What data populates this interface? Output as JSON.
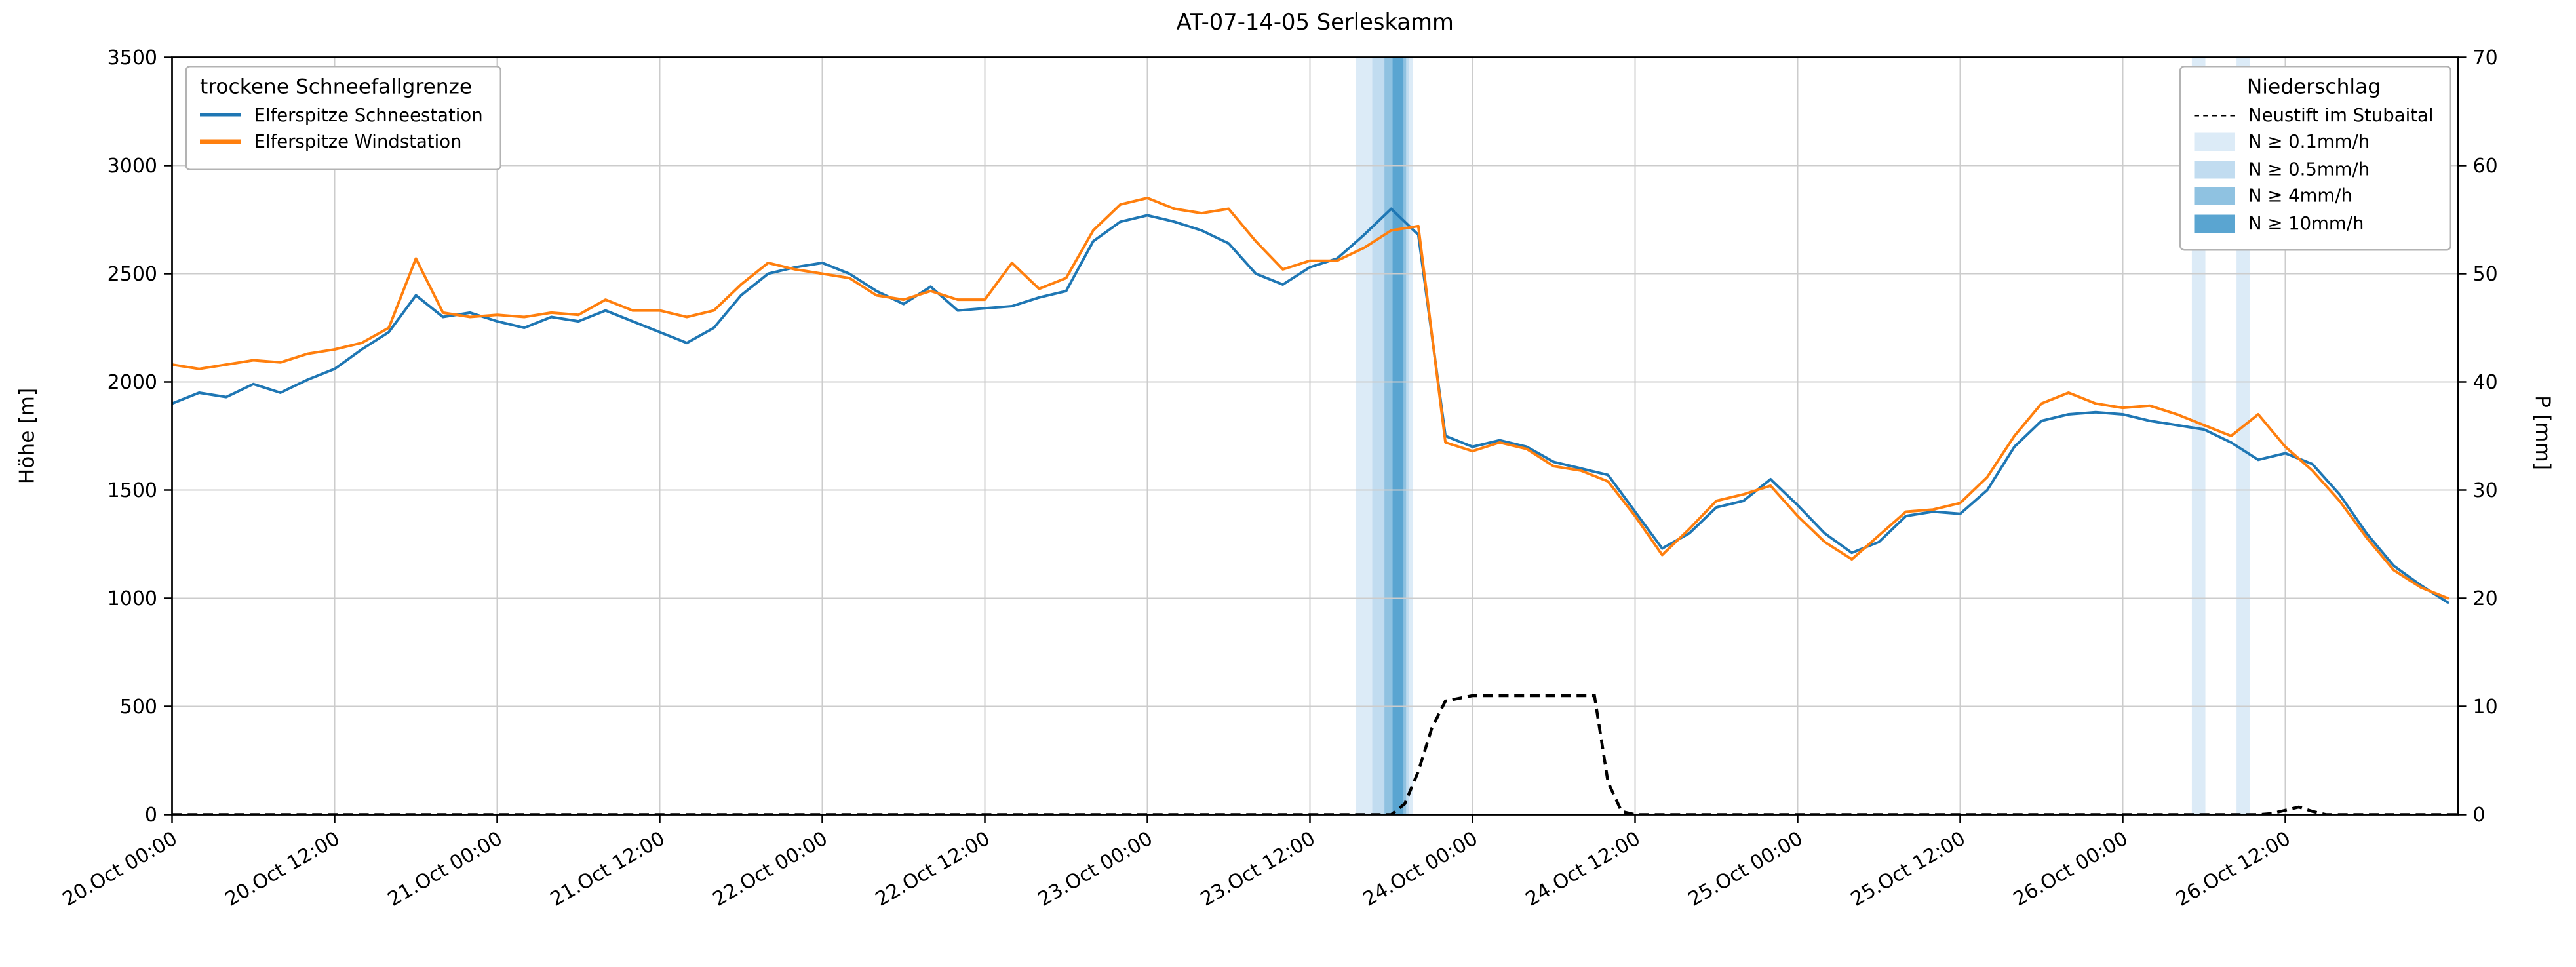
{
  "title": "AT-07-14-05 Serleskamm",
  "axes": {
    "ylabel_left": "Höhe [m]",
    "ylabel_right": "P [mm]",
    "ylim_left": [
      0,
      3500
    ],
    "ylim_right": [
      0,
      70
    ],
    "yticks_left": [
      0,
      500,
      1000,
      1500,
      2000,
      2500,
      3000,
      3500
    ],
    "yticks_right": [
      0,
      10,
      20,
      30,
      40,
      50,
      60,
      70
    ],
    "xlim_hours": [
      0,
      168.75
    ],
    "xticks": [
      {
        "hour": 0,
        "label": "20.Oct 00:00"
      },
      {
        "hour": 12,
        "label": "20.Oct 12:00"
      },
      {
        "hour": 24,
        "label": "21.Oct 00:00"
      },
      {
        "hour": 36,
        "label": "21.Oct 12:00"
      },
      {
        "hour": 48,
        "label": "22.Oct 00:00"
      },
      {
        "hour": 60,
        "label": "22.Oct 12:00"
      },
      {
        "hour": 72,
        "label": "23.Oct 00:00"
      },
      {
        "hour": 84,
        "label": "23.Oct 12:00"
      },
      {
        "hour": 96,
        "label": "24.Oct 00:00"
      },
      {
        "hour": 108,
        "label": "24.Oct 12:00"
      },
      {
        "hour": 120,
        "label": "25.Oct 00:00"
      },
      {
        "hour": 132,
        "label": "25.Oct 12:00"
      },
      {
        "hour": 144,
        "label": "26.Oct 00:00"
      },
      {
        "hour": 156,
        "label": "26.Oct 12:00"
      }
    ]
  },
  "legend_snowline": {
    "title": "trockene Schneefallgrenze",
    "entries": [
      {
        "label": "Elferspitze Schneestation",
        "color": "#1f77b4"
      },
      {
        "label": "Elferspitze Windstation",
        "color": "#ff7f0e"
      }
    ]
  },
  "legend_precip": {
    "title": "Niederschlag",
    "line_entry": {
      "label": "Neustift im Stubaital",
      "color": "#000000"
    },
    "band_entries": [
      {
        "label": "N ≥ 0.1mm/h",
        "color": "#dcebf7"
      },
      {
        "label": "N ≥ 0.5mm/h",
        "color": "#c1dcf0"
      },
      {
        "label": "N ≥ 4mm/h",
        "color": "#8fc2e1"
      },
      {
        "label": "N ≥ 10mm/h",
        "color": "#5aa5d1"
      }
    ]
  },
  "chart_data": {
    "type": "line",
    "title": "AT-07-14-05 Serleskamm",
    "xlabel": "",
    "ylabel_left": "Höhe [m]",
    "ylabel_right": "P [mm]",
    "x_unit": "hours since 20.Oct 00:00",
    "x_hours": [
      0,
      2,
      4,
      6,
      8,
      10,
      12,
      14,
      16,
      18,
      20,
      22,
      24,
      26,
      28,
      30,
      32,
      34,
      36,
      38,
      40,
      42,
      44,
      46,
      48,
      50,
      52,
      54,
      56,
      58,
      60,
      62,
      64,
      66,
      68,
      70,
      72,
      74,
      76,
      78,
      80,
      82,
      84,
      86,
      88,
      90,
      92,
      94,
      96,
      98,
      100,
      102,
      104,
      106,
      108,
      110,
      112,
      114,
      116,
      118,
      120,
      122,
      124,
      126,
      128,
      130,
      132,
      134,
      136,
      138,
      140,
      142,
      144,
      146,
      148,
      150,
      152,
      154,
      156,
      158,
      160,
      162,
      164,
      166,
      168
    ],
    "series": [
      {
        "name": "Elferspitze Schneestation",
        "color": "#1f77b4",
        "unit": "m",
        "values": [
          1900,
          1950,
          1930,
          1990,
          1950,
          2010,
          2060,
          2150,
          2230,
          2400,
          2300,
          2320,
          2280,
          2250,
          2300,
          2280,
          2330,
          2280,
          2230,
          2180,
          2250,
          2400,
          2500,
          2530,
          2550,
          2500,
          2420,
          2360,
          2440,
          2330,
          2340,
          2350,
          2390,
          2420,
          2650,
          2740,
          2770,
          2740,
          2700,
          2640,
          2500,
          2450,
          2530,
          2570,
          2680,
          2800,
          2680,
          1750,
          1700,
          1730,
          1700,
          1630,
          1600,
          1570,
          1400,
          1230,
          1300,
          1420,
          1450,
          1550,
          1430,
          1300,
          1210,
          1260,
          1380,
          1400,
          1390,
          1500,
          1700,
          1820,
          1850,
          1860,
          1850,
          1820,
          1800,
          1780,
          1720,
          1640,
          1670,
          1620,
          1480,
          1300,
          1150,
          1060,
          980
        ]
      },
      {
        "name": "Elferspitze Windstation",
        "color": "#ff7f0e",
        "unit": "m",
        "values": [
          2080,
          2060,
          2080,
          2100,
          2090,
          2130,
          2150,
          2180,
          2250,
          2570,
          2320,
          2300,
          2310,
          2300,
          2320,
          2310,
          2380,
          2330,
          2330,
          2300,
          2330,
          2450,
          2550,
          2520,
          2500,
          2480,
          2400,
          2380,
          2420,
          2380,
          2380,
          2550,
          2430,
          2480,
          2700,
          2820,
          2850,
          2800,
          2780,
          2800,
          2650,
          2520,
          2560,
          2560,
          2620,
          2700,
          2720,
          1720,
          1680,
          1720,
          1690,
          1610,
          1590,
          1540,
          1380,
          1200,
          1320,
          1450,
          1480,
          1520,
          1380,
          1260,
          1180,
          1290,
          1400,
          1410,
          1440,
          1560,
          1750,
          1900,
          1950,
          1900,
          1880,
          1890,
          1850,
          1800,
          1750,
          1850,
          1700,
          1590,
          1450,
          1280,
          1130,
          1050,
          1000
        ]
      }
    ],
    "precipitation_line": {
      "name": "Neustift im Stubaital",
      "axis": "right",
      "style": "dashed",
      "color": "#000000",
      "unit": "mm",
      "points": [
        [
          0,
          0
        ],
        [
          90,
          0
        ],
        [
          91,
          1
        ],
        [
          92,
          4
        ],
        [
          93,
          8
        ],
        [
          94,
          10.5
        ],
        [
          96,
          11
        ],
        [
          105,
          11
        ],
        [
          106,
          3
        ],
        [
          107,
          0.3
        ],
        [
          108,
          0
        ],
        [
          154,
          0
        ],
        [
          155,
          0.1
        ],
        [
          156,
          0.4
        ],
        [
          157,
          0.7
        ],
        [
          158,
          0.3
        ],
        [
          159,
          0
        ],
        [
          168.75,
          0
        ]
      ]
    },
    "precip_bands": [
      {
        "from_hour": 87.4,
        "to_hour": 91.6,
        "intensity": "N ≥ 0.1mm/h",
        "color": "#dcebf7"
      },
      {
        "from_hour": 88.6,
        "to_hour": 91.3,
        "intensity": "N ≥ 0.5mm/h",
        "color": "#c1dcf0"
      },
      {
        "from_hour": 89.5,
        "to_hour": 91.1,
        "intensity": "N ≥ 4mm/h",
        "color": "#8fc2e1"
      },
      {
        "from_hour": 90.1,
        "to_hour": 90.9,
        "intensity": "N ≥ 10mm/h",
        "color": "#5aa5d1"
      },
      {
        "from_hour": 149.1,
        "to_hour": 150.1,
        "intensity": "N ≥ 0.1mm/h",
        "color": "#dcebf7"
      },
      {
        "from_hour": 152.4,
        "to_hour": 153.4,
        "intensity": "N ≥ 0.1mm/h",
        "color": "#dcebf7"
      }
    ],
    "grid": true,
    "legend_positions": {
      "snowline": "upper left",
      "precip": "upper right"
    }
  }
}
